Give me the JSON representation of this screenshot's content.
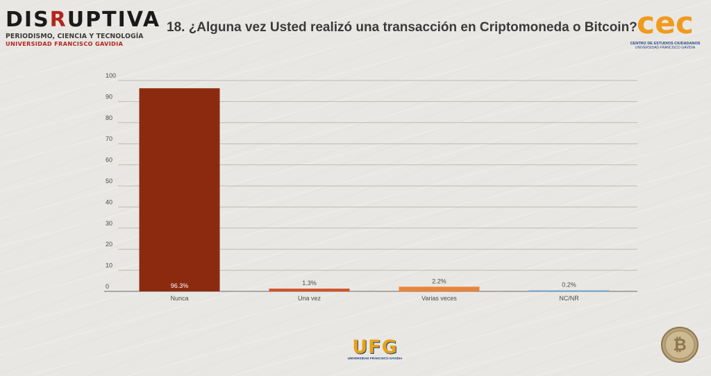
{
  "header": {
    "logo_left_main_pre": "DIS",
    "logo_left_main_accent": "R",
    "logo_left_main_post": "UPTIVA",
    "logo_left_line1": "PERIODISMO, CIENCIA Y TECNOLOGÍA",
    "logo_left_line2": "UNIVERSIDAD FRANCISCO GAVIDIA",
    "title": "18. ¿Alguna vez Usted realizó una transacción en Criptomoneda o Bitcoin?",
    "logo_right_text": "cec",
    "logo_right_line1": "CENTRO DE ESTUDIOS CIUDADANOS",
    "logo_right_line2": "UNIVERSIDAD FRANCISCO GAVIDIA"
  },
  "footer": {
    "ufg_logo": "UFG",
    "ufg_sub": "UNIVERSIDAD FRANCISCO GAVIDIA",
    "coin_icon": "bitcoin-coin-icon"
  },
  "colors": {
    "bar_nunca": "#8b2a0f",
    "bar_una_vez": "#d2532b",
    "bar_varias": "#e8843a",
    "bar_ncnr": "#6fa8d6",
    "grid": "#bdbab5",
    "axis": "#6a6a6a",
    "text": "#4a4a4a"
  },
  "chart_data": {
    "type": "bar",
    "title": "18. ¿Alguna vez Usted realizó una transacción en Criptomoneda o Bitcoin?",
    "categories": [
      "Nunca",
      "Una vez",
      "Varias veces",
      "NC/NR"
    ],
    "values": [
      96.3,
      1.3,
      2.2,
      0.2
    ],
    "data_labels": [
      "96.3%",
      "1.3%",
      "2.2%",
      "0.2%"
    ],
    "ylim": [
      0,
      100
    ],
    "yticks": [
      0,
      10,
      20,
      30,
      40,
      50,
      60,
      70,
      80,
      90,
      100
    ],
    "xlabel": "",
    "ylabel": "",
    "grid": true,
    "legend": "none"
  }
}
